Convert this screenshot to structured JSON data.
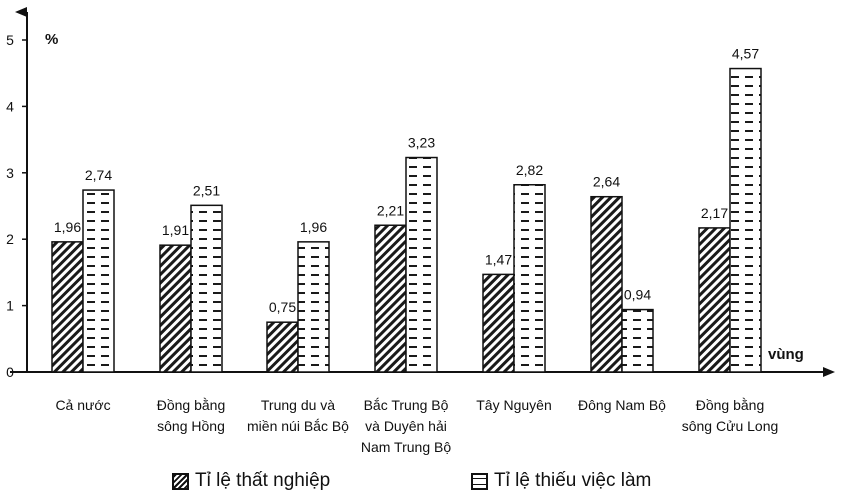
{
  "chart_data": {
    "type": "bar",
    "ylabel": "%",
    "xlabel": "vùng",
    "ylim": [
      0,
      5
    ],
    "yticks": [
      "0",
      "1",
      "2",
      "3",
      "4",
      "5"
    ],
    "categories": [
      [
        "Cả nước"
      ],
      [
        "Đồng bằng",
        "sông Hồng"
      ],
      [
        "Trung du và",
        "miền núi Bắc Bộ"
      ],
      [
        "Bắc Trung Bộ",
        "và Duyên hải",
        "Nam Trung Bộ"
      ],
      [
        "Tây Nguyên"
      ],
      [
        "Đông Nam Bộ"
      ],
      [
        "Đồng bằng",
        "sông Cửu Long"
      ]
    ],
    "series": [
      {
        "name": "Tỉ lệ thất nghiệp",
        "values": [
          1.96,
          1.91,
          0.75,
          2.21,
          1.47,
          2.64,
          2.17
        ],
        "labels": [
          "1,96",
          "1,91",
          "0,75",
          "2,21",
          "1,47",
          "2,64",
          "2,17"
        ]
      },
      {
        "name": "Tỉ lệ thiếu việc làm",
        "values": [
          2.74,
          2.51,
          1.96,
          3.23,
          2.82,
          0.94,
          4.57
        ],
        "labels": [
          "2,74",
          "2,51",
          "1,96",
          "3,23",
          "2,82",
          "0,94",
          "4,57"
        ]
      }
    ],
    "grid": false,
    "legend_position": "bottom"
  }
}
